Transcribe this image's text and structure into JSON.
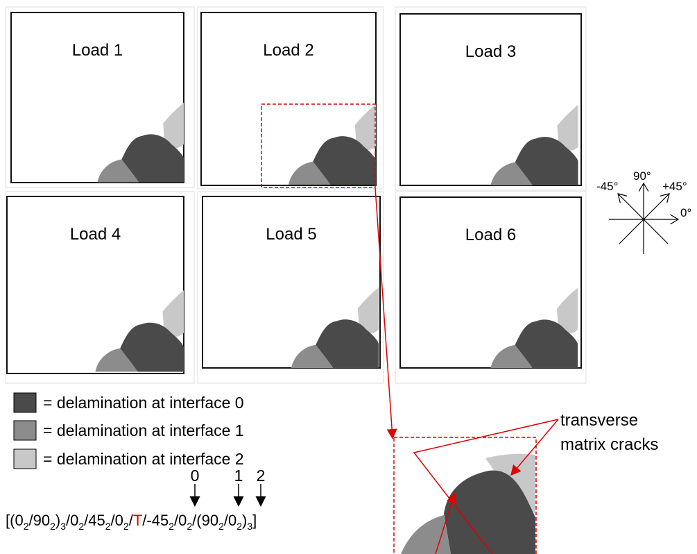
{
  "panels": [
    "Load 1",
    "Load 2",
    "Load 3",
    "Load 4",
    "Load 5",
    "Load 6"
  ],
  "legend": [
    "= delamination at interface 0",
    "= delamination at interface 1",
    "= delamination at interface 2"
  ],
  "compass": [
    "-45°",
    "90°",
    "+45°",
    "0°"
  ],
  "interface_indices": [
    "0",
    "1",
    "2"
  ],
  "layup": [
    {
      "text": "[(0",
      "sub": "2"
    },
    {
      "text": "/90",
      "sub": "2"
    },
    {
      "text": ")",
      "sub": "3"
    },
    {
      "text": "/0",
      "sub": "2"
    },
    {
      "text": "/45",
      "sub": "2"
    },
    {
      "text": "/0",
      "sub": "2"
    },
    {
      "text": "/"
    },
    {
      "text": "T",
      "color": "#e00000"
    },
    {
      "text": "/-45",
      "sub": "2"
    },
    {
      "text": "/0",
      "sub": "2"
    },
    {
      "text": "/(90",
      "sub": "2"
    },
    {
      "text": "/0",
      "sub": "2"
    },
    {
      "text": ")",
      "sub": "3"
    },
    {
      "text": "]"
    }
  ],
  "annotation": [
    "transverse",
    "matrix cracks"
  ]
}
